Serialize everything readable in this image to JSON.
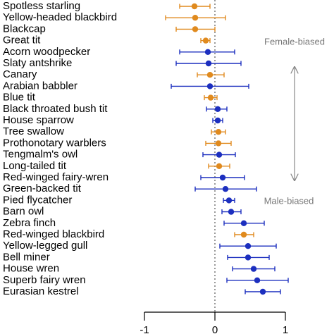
{
  "chart_data": {
    "type": "forest",
    "categories": [
      "Spotless starling",
      "Yellow-headed blackbird",
      "Blackcap",
      "Great tit",
      "Acorn woodpecker",
      "Slaty antshrike",
      "Canary",
      "Arabian babbler",
      "Blue tit",
      "Black throated bush tit",
      "House sparrow",
      "Tree swallow",
      "Prothonotary warblers",
      "Tengmalm's owl",
      "Long-tailed tit",
      "Red-winged fairy-wren",
      "Green-backed tit",
      "Pied flycatcher",
      "Barn owl",
      "Zebra finch",
      "Red-winged blackbird",
      "Yellow-legged gull",
      "Bell miner",
      "House wren",
      "Superb fairy wren",
      "Eurasian kestrel"
    ],
    "values": [
      -0.29,
      -0.28,
      -0.28,
      -0.13,
      -0.1,
      -0.09,
      -0.07,
      -0.07,
      -0.06,
      0.04,
      0.04,
      0.05,
      0.05,
      0.06,
      0.06,
      0.11,
      0.15,
      0.2,
      0.23,
      0.41,
      0.41,
      0.47,
      0.47,
      0.55,
      0.6,
      0.68
    ],
    "lower": [
      -0.5,
      -0.7,
      -0.55,
      -0.2,
      -0.5,
      -0.55,
      -0.25,
      -0.62,
      -0.15,
      -0.12,
      -0.03,
      -0.05,
      -0.13,
      -0.17,
      -0.09,
      -0.2,
      -0.28,
      0.12,
      0.1,
      0.13,
      0.28,
      0.07,
      0.18,
      0.25,
      0.17,
      0.43
    ],
    "upper": [
      -0.07,
      0.15,
      0.0,
      -0.07,
      0.28,
      0.37,
      0.13,
      0.48,
      0.03,
      0.17,
      0.11,
      0.15,
      0.23,
      0.29,
      0.21,
      0.42,
      0.59,
      0.28,
      0.37,
      0.7,
      0.55,
      0.87,
      0.77,
      0.85,
      1.04,
      0.93
    ],
    "colors": [
      "#e08a1e",
      "#e08a1e",
      "#e08a1e",
      "#e08a1e",
      "#1c2fbf",
      "#1c2fbf",
      "#e08a1e",
      "#1c2fbf",
      "#e08a1e",
      "#1c2fbf",
      "#1c2fbf",
      "#e08a1e",
      "#e08a1e",
      "#1c2fbf",
      "#e08a1e",
      "#1c2fbf",
      "#1c2fbf",
      "#1c2fbf",
      "#1c2fbf",
      "#1c2fbf",
      "#e08a1e",
      "#1c2fbf",
      "#1c2fbf",
      "#1c2fbf",
      "#1c2fbf",
      "#1c2fbf"
    ],
    "xlim": [
      -1,
      1
    ],
    "xticks": [
      -1,
      0,
      1
    ],
    "reference_line": 0,
    "annotations": [
      "Female-biased",
      "Male-biased"
    ]
  }
}
